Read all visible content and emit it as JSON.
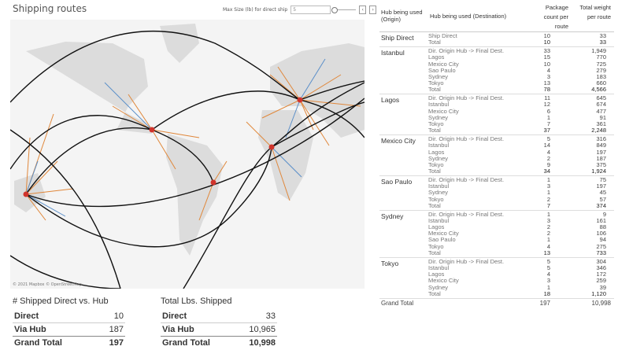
{
  "title": "Shipping routes",
  "max_size": {
    "label": "Max Size (lb) for direct ship",
    "value": "5"
  },
  "map": {
    "credit": "© 2021 Mapbox © OpenStreetMap"
  },
  "kpi_direct": {
    "title": "# Shipped Direct vs. Hub",
    "rows": [
      {
        "label": "Direct",
        "value": "10"
      },
      {
        "label": "Via Hub",
        "value": "187"
      },
      {
        "label": "Grand Total",
        "value": "197"
      }
    ]
  },
  "kpi_lbs": {
    "title": "Total Lbs. Shipped",
    "rows": [
      {
        "label": "Direct",
        "value": "33"
      },
      {
        "label": "Via Hub",
        "value": "10,965"
      },
      {
        "label": "Grand Total",
        "value": "10,998"
      }
    ]
  },
  "table": {
    "headers": {
      "origin": "Hub being used (Origin)",
      "dest": "Hub being used (Destination)",
      "count": "Package count per route",
      "weight": "Total weight per route"
    },
    "groups": [
      {
        "origin": "Ship Direct",
        "rows": [
          [
            "Ship Direct",
            "10",
            "33"
          ],
          [
            "Total",
            "10",
            "33"
          ]
        ]
      },
      {
        "origin": "Istanbul",
        "rows": [
          [
            "Dir. Origin Hub -> Final Dest.",
            "33",
            "1,949"
          ],
          [
            "Lagos",
            "15",
            "770"
          ],
          [
            "Mexico City",
            "10",
            "725"
          ],
          [
            "Sao Paulo",
            "4",
            "279"
          ],
          [
            "Sydney",
            "3",
            "183"
          ],
          [
            "Tokyo",
            "13",
            "660"
          ],
          [
            "Total",
            "78",
            "4,566"
          ]
        ]
      },
      {
        "origin": "Lagos",
        "rows": [
          [
            "Dir. Origin Hub -> Final Dest.",
            "11",
            "645"
          ],
          [
            "Istanbul",
            "12",
            "674"
          ],
          [
            "Mexico City",
            "6",
            "477"
          ],
          [
            "Sydney",
            "1",
            "91"
          ],
          [
            "Tokyo",
            "7",
            "361"
          ],
          [
            "Total",
            "37",
            "2,248"
          ]
        ]
      },
      {
        "origin": "Mexico City",
        "rows": [
          [
            "Dir. Origin Hub -> Final Dest.",
            "5",
            "316"
          ],
          [
            "Istanbul",
            "14",
            "849"
          ],
          [
            "Lagos",
            "4",
            "197"
          ],
          [
            "Sydney",
            "2",
            "187"
          ],
          [
            "Tokyo",
            "9",
            "375"
          ],
          [
            "Total",
            "34",
            "1,924"
          ]
        ]
      },
      {
        "origin": "Sao Paulo",
        "rows": [
          [
            "Dir. Origin Hub -> Final Dest.",
            "1",
            "75"
          ],
          [
            "Istanbul",
            "3",
            "197"
          ],
          [
            "Sydney",
            "1",
            "45"
          ],
          [
            "Tokyo",
            "2",
            "57"
          ],
          [
            "Total",
            "7",
            "374"
          ]
        ]
      },
      {
        "origin": "Sydney",
        "rows": [
          [
            "Dir. Origin Hub -> Final Dest.",
            "1",
            "9"
          ],
          [
            "Istanbul",
            "3",
            "161"
          ],
          [
            "Lagos",
            "2",
            "88"
          ],
          [
            "Mexico City",
            "2",
            "106"
          ],
          [
            "Sao Paulo",
            "1",
            "94"
          ],
          [
            "Tokyo",
            "4",
            "275"
          ],
          [
            "Total",
            "13",
            "733"
          ]
        ]
      },
      {
        "origin": "Tokyo",
        "rows": [
          [
            "Dir. Origin Hub -> Final Dest.",
            "5",
            "304"
          ],
          [
            "Istanbul",
            "5",
            "346"
          ],
          [
            "Lagos",
            "4",
            "172"
          ],
          [
            "Mexico City",
            "3",
            "259"
          ],
          [
            "Sydney",
            "1",
            "39"
          ],
          [
            "Total",
            "18",
            "1,120"
          ]
        ]
      }
    ],
    "grand_total": {
      "label": "Grand Total",
      "count": "197",
      "weight": "10,998"
    }
  },
  "colors": {
    "hub": "#d0342c",
    "route_orange": "#e0873a",
    "route_blue": "#5b8fc9",
    "arc": "#111111",
    "land": "#dcdcdc"
  }
}
